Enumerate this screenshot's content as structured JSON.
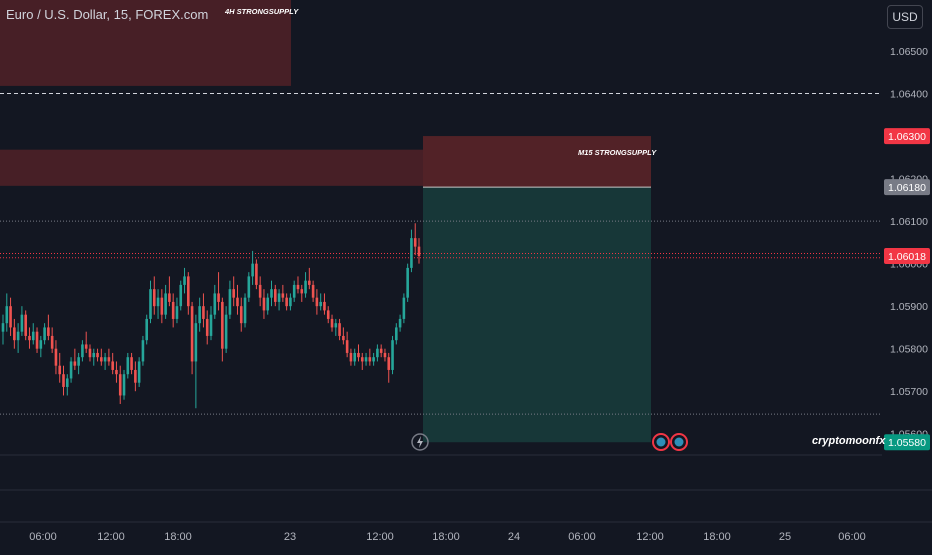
{
  "header": {
    "symbol_title": "Euro / U.S. Dollar, 15, FOREX.com",
    "currency": "USD"
  },
  "watermark": "cryptomoonfx",
  "colors": {
    "background": "#131722",
    "up": "#26a69a",
    "down": "#ef5350",
    "supply_zone": "#5a2328",
    "target_zone": "#17393a",
    "price_red": "#f23645",
    "price_green": "#089981",
    "price_gray": "#787b86"
  },
  "icons": [
    "lightning-event-icon",
    "dividend-event-icon",
    "dividend-event-icon"
  ],
  "chart_data": {
    "type": "candlestick",
    "title": "Euro / U.S. Dollar, 15, FOREX.com",
    "ylim": [
      1.0555,
      1.0662
    ],
    "y_ticks": [
      "1.06500",
      "1.06400",
      "1.06300",
      "1.06200",
      "1.06100",
      "1.06000",
      "1.05900",
      "1.05800",
      "1.05700",
      "1.05600"
    ],
    "x_ticks": [
      "06:00",
      "12:00",
      "18:00",
      "23",
      "12:00",
      "18:00",
      "24",
      "06:00",
      "12:00",
      "18:00",
      "25",
      "06:00"
    ],
    "price_labels": [
      {
        "value": "1.06300",
        "style": "red"
      },
      {
        "value": "1.06180",
        "style": "gray"
      },
      {
        "value": "1.06018",
        "style": "red"
      },
      {
        "value": "1.05580",
        "style": "green"
      }
    ],
    "zones": [
      {
        "label": "4H STRONGSUPPLY",
        "y_top": 1.06633,
        "y_bottom": 1.06418
      },
      {
        "label": "",
        "y_top": 1.06268,
        "y_bottom": 1.06183
      },
      {
        "label": "M15 STRONGSUPPLY",
        "y_top": 1.063,
        "y_bottom": 1.0618
      }
    ],
    "target_zone": {
      "y_top": 1.0618,
      "y_bottom": 1.0558
    },
    "horizontal_lines": [
      1.064,
      1.061,
      1.06024,
      1.06014,
      1.05646
    ],
    "candles": [
      [
        1.0584,
        1.0588,
        1.0581,
        1.0586
      ],
      [
        1.0586,
        1.0593,
        1.0584,
        1.059
      ],
      [
        1.059,
        1.0592,
        1.0583,
        1.0585
      ],
      [
        1.0585,
        1.0587,
        1.058,
        1.0582
      ],
      [
        1.0582,
        1.0586,
        1.0579,
        1.0584
      ],
      [
        1.0584,
        1.059,
        1.0583,
        1.0588
      ],
      [
        1.0588,
        1.0589,
        1.0582,
        1.0583
      ],
      [
        1.0583,
        1.0585,
        1.058,
        1.0582
      ],
      [
        1.0582,
        1.0586,
        1.0581,
        1.0584
      ],
      [
        1.0584,
        1.0585,
        1.0579,
        1.058
      ],
      [
        1.058,
        1.0583,
        1.0578,
        1.0582
      ],
      [
        1.0582,
        1.0586,
        1.0581,
        1.0585
      ],
      [
        1.0585,
        1.0588,
        1.0582,
        1.0583
      ],
      [
        1.0583,
        1.0585,
        1.0579,
        1.058
      ],
      [
        1.058,
        1.0582,
        1.0574,
        1.0576
      ],
      [
        1.0576,
        1.0579,
        1.0572,
        1.0574
      ],
      [
        1.0574,
        1.0576,
        1.0569,
        1.0571
      ],
      [
        1.0571,
        1.0574,
        1.0569,
        1.0573
      ],
      [
        1.0573,
        1.0578,
        1.0572,
        1.0577
      ],
      [
        1.0577,
        1.058,
        1.0575,
        1.0576
      ],
      [
        1.0576,
        1.0579,
        1.0574,
        1.0578
      ],
      [
        1.0578,
        1.0582,
        1.0577,
        1.0581
      ],
      [
        1.0581,
        1.0584,
        1.0579,
        1.058
      ],
      [
        1.058,
        1.0581,
        1.0577,
        1.0578
      ],
      [
        1.0578,
        1.058,
        1.0576,
        1.0579
      ],
      [
        1.0579,
        1.058,
        1.0577,
        1.0578
      ],
      [
        1.0578,
        1.058,
        1.0576,
        1.0577
      ],
      [
        1.0577,
        1.0579,
        1.0575,
        1.0578
      ],
      [
        1.0578,
        1.058,
        1.0576,
        1.0577
      ],
      [
        1.0577,
        1.0579,
        1.0574,
        1.0575
      ],
      [
        1.0575,
        1.0577,
        1.0572,
        1.0574
      ],
      [
        1.0574,
        1.0576,
        1.0567,
        1.0569
      ],
      [
        1.0569,
        1.0575,
        1.0568,
        1.0574
      ],
      [
        1.0574,
        1.0579,
        1.0573,
        1.0578
      ],
      [
        1.0578,
        1.0579,
        1.0574,
        1.0575
      ],
      [
        1.0575,
        1.0577,
        1.057,
        1.0572
      ],
      [
        1.0572,
        1.0578,
        1.0571,
        1.0577
      ],
      [
        1.0577,
        1.0583,
        1.0576,
        1.0582
      ],
      [
        1.0582,
        1.0588,
        1.0581,
        1.0587
      ],
      [
        1.0587,
        1.0596,
        1.0586,
        1.0594
      ],
      [
        1.0594,
        1.0597,
        1.0588,
        1.059
      ],
      [
        1.059,
        1.0594,
        1.0587,
        1.0592
      ],
      [
        1.0592,
        1.0594,
        1.0586,
        1.0588
      ],
      [
        1.0588,
        1.0595,
        1.0587,
        1.0593
      ],
      [
        1.0593,
        1.0597,
        1.059,
        1.0591
      ],
      [
        1.0591,
        1.0593,
        1.0585,
        1.0587
      ],
      [
        1.0587,
        1.0592,
        1.0586,
        1.059
      ],
      [
        1.059,
        1.0596,
        1.0589,
        1.0595
      ],
      [
        1.0595,
        1.0599,
        1.0593,
        1.0597
      ],
      [
        1.0597,
        1.0598,
        1.0588,
        1.059
      ],
      [
        1.059,
        1.0591,
        1.0574,
        1.0577
      ],
      [
        1.0577,
        1.0588,
        1.0566,
        1.0586
      ],
      [
        1.0586,
        1.0592,
        1.0584,
        1.059
      ],
      [
        1.059,
        1.0593,
        1.0585,
        1.0587
      ],
      [
        1.0587,
        1.0589,
        1.0581,
        1.0583
      ],
      [
        1.0583,
        1.059,
        1.0582,
        1.0588
      ],
      [
        1.0588,
        1.0595,
        1.0587,
        1.0593
      ],
      [
        1.0593,
        1.0598,
        1.0589,
        1.0591
      ],
      [
        1.0591,
        1.0592,
        1.0577,
        1.058
      ],
      [
        1.058,
        1.059,
        1.0579,
        1.0588
      ],
      [
        1.0588,
        1.0596,
        1.0587,
        1.0594
      ],
      [
        1.0594,
        1.0597,
        1.059,
        1.0592
      ],
      [
        1.0592,
        1.0595,
        1.0588,
        1.059
      ],
      [
        1.059,
        1.0592,
        1.0584,
        1.0586
      ],
      [
        1.0586,
        1.0593,
        1.0585,
        1.0592
      ],
      [
        1.0592,
        1.0598,
        1.0591,
        1.0597
      ],
      [
        1.0597,
        1.0603,
        1.0595,
        1.06
      ],
      [
        1.06,
        1.0601,
        1.0594,
        1.0595
      ],
      [
        1.0595,
        1.0597,
        1.059,
        1.0592
      ],
      [
        1.0592,
        1.0594,
        1.0587,
        1.0589
      ],
      [
        1.0589,
        1.0593,
        1.0588,
        1.0592
      ],
      [
        1.0592,
        1.0596,
        1.059,
        1.0594
      ],
      [
        1.0594,
        1.0595,
        1.059,
        1.0591
      ],
      [
        1.0591,
        1.0594,
        1.0589,
        1.0593
      ],
      [
        1.0593,
        1.0595,
        1.0591,
        1.0592
      ],
      [
        1.0592,
        1.0593,
        1.0589,
        1.059
      ],
      [
        1.059,
        1.0593,
        1.0589,
        1.0592
      ],
      [
        1.0592,
        1.0596,
        1.0591,
        1.0595
      ],
      [
        1.0595,
        1.0597,
        1.0593,
        1.0594
      ],
      [
        1.0594,
        1.0595,
        1.0591,
        1.0593
      ],
      [
        1.0593,
        1.0598,
        1.0592,
        1.0596
      ],
      [
        1.0596,
        1.0599,
        1.0594,
        1.0595
      ],
      [
        1.0595,
        1.0596,
        1.0591,
        1.0592
      ],
      [
        1.0592,
        1.0594,
        1.0588,
        1.059
      ],
      [
        1.059,
        1.0593,
        1.0589,
        1.0591
      ],
      [
        1.0591,
        1.0593,
        1.0588,
        1.0589
      ],
      [
        1.0589,
        1.059,
        1.0586,
        1.0587
      ],
      [
        1.0587,
        1.0588,
        1.0584,
        1.0585
      ],
      [
        1.0585,
        1.0587,
        1.0583,
        1.0586
      ],
      [
        1.0586,
        1.0587,
        1.0582,
        1.0583
      ],
      [
        1.0583,
        1.0585,
        1.0581,
        1.0582
      ],
      [
        1.0582,
        1.0584,
        1.0578,
        1.0579
      ],
      [
        1.0579,
        1.058,
        1.0576,
        1.0577
      ],
      [
        1.0577,
        1.058,
        1.0576,
        1.0579
      ],
      [
        1.0579,
        1.0581,
        1.0577,
        1.0578
      ],
      [
        1.0578,
        1.0579,
        1.0575,
        1.0577
      ],
      [
        1.0577,
        1.0579,
        1.0576,
        1.0578
      ],
      [
        1.0578,
        1.058,
        1.0576,
        1.0577
      ],
      [
        1.0577,
        1.0579,
        1.0576,
        1.0578
      ],
      [
        1.0578,
        1.0581,
        1.0577,
        1.058
      ],
      [
        1.058,
        1.0581,
        1.0578,
        1.0579
      ],
      [
        1.0579,
        1.058,
        1.0577,
        1.0578
      ],
      [
        1.0578,
        1.0579,
        1.0572,
        1.0575
      ],
      [
        1.0575,
        1.0583,
        1.0574,
        1.0582
      ],
      [
        1.0582,
        1.0586,
        1.0581,
        1.0585
      ],
      [
        1.0585,
        1.0588,
        1.0584,
        1.0587
      ],
      [
        1.0587,
        1.0593,
        1.0586,
        1.0592
      ],
      [
        1.0592,
        1.06,
        1.0591,
        1.0599
      ],
      [
        1.0599,
        1.0608,
        1.0598,
        1.0606
      ],
      [
        1.0606,
        1.06095,
        1.0602,
        1.0604
      ],
      [
        1.0604,
        1.0606,
        1.06,
        1.06018
      ]
    ]
  }
}
